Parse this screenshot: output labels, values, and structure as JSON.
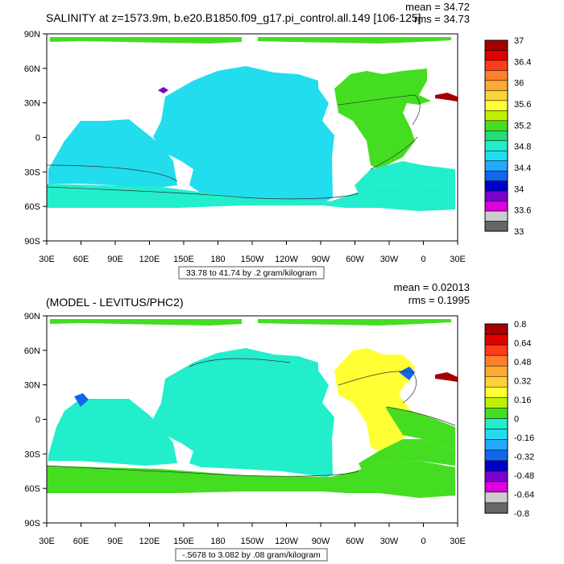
{
  "panels": [
    {
      "title": "SALINITY at z=1573.9m, b.e20.B1850.f09_g17.pi_control.all.149 [106-125]",
      "mean_text": "mean = 34.72",
      "rms_text": "rms = 34.73",
      "info": "33.78 to 41.74 by .2 gram/kilogram",
      "colorbar_labels": [
        "37",
        "36.4",
        "36",
        "35.6",
        "35.2",
        "34.8",
        "34.4",
        "34",
        "33.6",
        "33"
      ],
      "colorbar_colors": [
        "#a50000",
        "#e00000",
        "#ff3a1a",
        "#ff7f2a",
        "#ffaa33",
        "#ffd23a",
        "#ffff33",
        "#bff000",
        "#44dd22",
        "#22dd77",
        "#22eecc",
        "#22ddee",
        "#22aaff",
        "#1166ee",
        "#0000cc",
        "#7a00cc",
        "#dd00dd",
        "#cccccc",
        "#666666"
      ],
      "regions": {
        "ocean": "#22ddee",
        "band_mid": "#22eecc",
        "band_south": "#44dd22",
        "atlantic": "#44dd22",
        "med": "#a50000",
        "med_alt": "#7a00cc"
      }
    },
    {
      "title": "(MODEL - LEVITUS/PHC2)",
      "mean_text": "mean = 0.02013",
      "rms_text": "rms = 0.1995",
      "info": "-.5678 to 3.082 by .08 gram/kilogram",
      "colorbar_labels": [
        "0.8",
        "0.64",
        "0.48",
        "0.32",
        "0.16",
        "0",
        "-0.16",
        "-0.32",
        "-0.48",
        "-0.64",
        "-0.8"
      ],
      "colorbar_colors": [
        "#a50000",
        "#e00000",
        "#ff3a1a",
        "#ff7f2a",
        "#ffaa33",
        "#ffd23a",
        "#ffff33",
        "#bff000",
        "#44dd22",
        "#22eecc",
        "#22ddee",
        "#22aaff",
        "#1166ee",
        "#0000cc",
        "#7a00cc",
        "#dd00dd",
        "#cccccc",
        "#666666"
      ],
      "regions": {
        "ocean": "#22eecc",
        "band_south": "#44dd22",
        "atlantic": "#ffff33",
        "atlantic_b": "#44dd22",
        "med": "#a50000",
        "gulf": "#1166ee"
      }
    }
  ],
  "axes": {
    "lat_labels": [
      "90N",
      "60N",
      "30N",
      "0",
      "30S",
      "60S",
      "90S"
    ],
    "lon_labels": [
      "30E",
      "60E",
      "90E",
      "120E",
      "150E",
      "180",
      "150W",
      "120W",
      "90W",
      "60W",
      "30W",
      "0",
      "30E"
    ]
  }
}
